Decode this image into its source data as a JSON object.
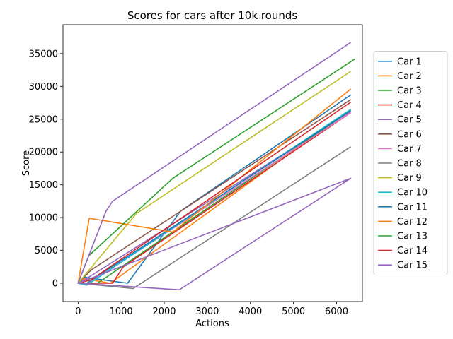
{
  "chart_data": {
    "type": "line",
    "title": "Scores for cars after 10k rounds",
    "xlabel": "Actions",
    "ylabel": "Score",
    "xlim": [
      -350,
      6600
    ],
    "ylim": [
      -2800,
      39400
    ],
    "xticks": [
      0,
      1000,
      2000,
      3000,
      4000,
      5000,
      6000
    ],
    "yticks": [
      0,
      5000,
      10000,
      15000,
      20000,
      25000,
      30000,
      35000
    ],
    "grid": false,
    "legend_position": "right",
    "series": [
      {
        "name": "Car 1",
        "color": "#1f77b4",
        "x": [
          0,
          150,
          1150,
          2380,
          6330
        ],
        "y": [
          0,
          900,
          0,
          11000,
          28700
        ]
      },
      {
        "name": "Car 2",
        "color": "#ff7f0e",
        "x": [
          0,
          150,
          750,
          6330
        ],
        "y": [
          0,
          700,
          0,
          26500
        ]
      },
      {
        "name": "Car 3",
        "color": "#2ca02c",
        "x": [
          0,
          450,
          6330
        ],
        "y": [
          0,
          0,
          26300
        ]
      },
      {
        "name": "Car 4",
        "color": "#d62728",
        "x": [
          0,
          800,
          1050,
          6330
        ],
        "y": [
          0,
          0,
          2500,
          26000
        ]
      },
      {
        "name": "Car 5",
        "color": "#9467bd",
        "x": [
          0,
          150,
          6330
        ],
        "y": [
          0,
          500,
          26200
        ]
      },
      {
        "name": "Car 6",
        "color": "#8c564b",
        "x": [
          0,
          300,
          6330
        ],
        "y": [
          0,
          2000,
          28000
        ]
      },
      {
        "name": "Car 7",
        "color": "#e377c2",
        "x": [
          0,
          250,
          6330
        ],
        "y": [
          0,
          0,
          26000
        ]
      },
      {
        "name": "Car 8",
        "color": "#7f7f7f",
        "x": [
          0,
          1280,
          6330
        ],
        "y": [
          0,
          -800,
          20800
        ]
      },
      {
        "name": "Car 9",
        "color": "#bcbd22",
        "x": [
          0,
          1350,
          6330
        ],
        "y": [
          0,
          10600,
          32300
        ]
      },
      {
        "name": "Car 10",
        "color": "#17becf",
        "x": [
          0,
          200,
          6330
        ],
        "y": [
          0,
          -300,
          26500
        ]
      },
      {
        "name": "Car 11",
        "color": "#1f77b4",
        "x": [
          0,
          200,
          6330
        ],
        "y": [
          0,
          0,
          26300
        ]
      },
      {
        "name": "Car 12",
        "color": "#ff7f0e",
        "x": [
          0,
          260,
          2200,
          6330
        ],
        "y": [
          0,
          9900,
          7800,
          29600
        ]
      },
      {
        "name": "Car 13",
        "color": "#2ca02c",
        "x": [
          0,
          250,
          2200,
          6430
        ],
        "y": [
          0,
          4200,
          16000,
          34200
        ]
      },
      {
        "name": "Car 14",
        "color": "#d62728",
        "x": [
          0,
          300,
          6330
        ],
        "y": [
          0,
          500,
          27600
        ]
      },
      {
        "name": "Car 15",
        "color": "#9467bd",
        "x": [
          0,
          2350,
          6330,
          0,
          650,
          800,
          6330
        ],
        "y": [
          0,
          -1000,
          16000,
          0,
          11000,
          12500,
          36700
        ]
      }
    ]
  }
}
